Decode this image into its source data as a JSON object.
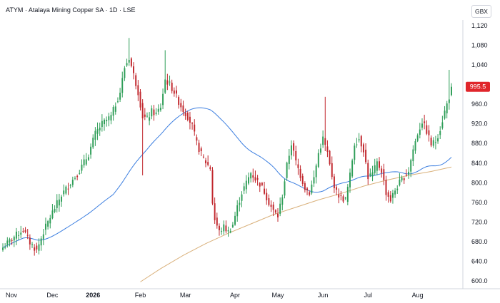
{
  "header": {
    "symbol": "ATYM",
    "separator": "·",
    "name": "Atalaya Mining Copper SA",
    "interval": "1D",
    "exchange": "LSE",
    "currency_button": "GBX"
  },
  "colors": {
    "up": "#2f9e58",
    "down": "#c1272d",
    "ma_fast": "#3d7fe0",
    "ma_slow": "#d9b07a",
    "last_price_bg": "#e0262b",
    "axis_text": "#131722",
    "border": "#d1d4dc"
  },
  "chart_data": {
    "type": "candlestick",
    "x_labels": [
      "Nov",
      "Dec",
      "2026",
      "Feb",
      "Mar",
      "Apr",
      "May",
      "Jun",
      "Jul",
      "Aug"
    ],
    "y_ticks": [
      600,
      640,
      680,
      720,
      760,
      800,
      840,
      880,
      920,
      960,
      1000,
      1040,
      1080,
      1120
    ],
    "y_tick_labels": [
      "600.0",
      "640.0",
      "680.0",
      "720.0",
      "760.0",
      "800.0",
      "840.0",
      "880.0",
      "920.0",
      "960.0",
      "",
      "1,040",
      "1,080",
      "1,120"
    ],
    "ylim": [
      590,
      1125
    ],
    "last_price": 995.5,
    "last_price_label": "995.5",
    "grid": false,
    "month_anchors": [
      {
        "label": "Nov",
        "index": 0
      },
      {
        "label": "Dec",
        "index": 22
      },
      {
        "label": "2026",
        "index": 40
      },
      {
        "label": "Feb",
        "index": 61
      },
      {
        "label": "Mar",
        "index": 81
      },
      {
        "label": "Apr",
        "index": 103
      },
      {
        "label": "May",
        "index": 122
      },
      {
        "label": "Jun",
        "index": 142
      },
      {
        "label": "Jul",
        "index": 162
      },
      {
        "label": "Aug",
        "index": 184
      }
    ],
    "close_anchors": [
      [
        0,
        668
      ],
      [
        5,
        690
      ],
      [
        9,
        705
      ],
      [
        12,
        678
      ],
      [
        15,
        662
      ],
      [
        18,
        700
      ],
      [
        22,
        740
      ],
      [
        26,
        775
      ],
      [
        30,
        800
      ],
      [
        34,
        825
      ],
      [
        38,
        858
      ],
      [
        41,
        900
      ],
      [
        44,
        920
      ],
      [
        48,
        935
      ],
      [
        52,
        985
      ],
      [
        54,
        1035
      ],
      [
        56,
        1055
      ],
      [
        58,
        1020
      ],
      [
        60,
        985
      ],
      [
        62,
        935
      ],
      [
        64,
        930
      ],
      [
        66,
        945
      ],
      [
        68,
        940
      ],
      [
        70,
        955
      ],
      [
        72,
        1010
      ],
      [
        74,
        1000
      ],
      [
        76,
        985
      ],
      [
        78,
        965
      ],
      [
        80,
        948
      ],
      [
        82,
        935
      ],
      [
        84,
        915
      ],
      [
        86,
        880
      ],
      [
        88,
        858
      ],
      [
        90,
        842
      ],
      [
        92,
        830
      ],
      [
        93,
        760
      ],
      [
        94,
        725
      ],
      [
        96,
        700
      ],
      [
        98,
        710
      ],
      [
        100,
        700
      ],
      [
        102,
        715
      ],
      [
        104,
        750
      ],
      [
        106,
        780
      ],
      [
        108,
        800
      ],
      [
        110,
        820
      ],
      [
        112,
        808
      ],
      [
        114,
        798
      ],
      [
        116,
        782
      ],
      [
        118,
        760
      ],
      [
        120,
        742
      ],
      [
        122,
        732
      ],
      [
        124,
        775
      ],
      [
        126,
        835
      ],
      [
        128,
        880
      ],
      [
        130,
        842
      ],
      [
        132,
        815
      ],
      [
        134,
        790
      ],
      [
        136,
        780
      ],
      [
        138,
        810
      ],
      [
        140,
        860
      ],
      [
        142,
        890
      ],
      [
        144,
        860
      ],
      [
        146,
        810
      ],
      [
        148,
        780
      ],
      [
        150,
        770
      ],
      [
        152,
        765
      ],
      [
        154,
        815
      ],
      [
        156,
        880
      ],
      [
        158,
        890
      ],
      [
        160,
        868
      ],
      [
        162,
        812
      ],
      [
        164,
        818
      ],
      [
        166,
        840
      ],
      [
        168,
        825
      ],
      [
        170,
        780
      ],
      [
        172,
        765
      ],
      [
        174,
        785
      ],
      [
        176,
        800
      ],
      [
        178,
        812
      ],
      [
        180,
        825
      ],
      [
        182,
        868
      ],
      [
        184,
        900
      ],
      [
        186,
        925
      ],
      [
        188,
        905
      ],
      [
        190,
        878
      ],
      [
        192,
        885
      ],
      [
        194,
        910
      ],
      [
        196,
        945
      ],
      [
        198,
        975
      ],
      [
        199,
        995.5
      ]
    ],
    "spikes": [
      {
        "index": 62,
        "low": 815
      },
      {
        "index": 143,
        "high": 975
      },
      {
        "index": 198,
        "high": 1030
      },
      {
        "index": 56,
        "high": 1095
      },
      {
        "index": 72,
        "high": 1070
      }
    ],
    "series": [
      {
        "name": "",
        "kind": "ma",
        "period": 50,
        "color": "#3d7fe0"
      },
      {
        "name": "",
        "kind": "ma",
        "period": 200,
        "color": "#d9b07a",
        "points": [
          [
            61,
            598
          ],
          [
            70,
            625
          ],
          [
            80,
            652
          ],
          [
            90,
            676
          ],
          [
            100,
            697
          ],
          [
            110,
            716
          ],
          [
            120,
            735
          ],
          [
            130,
            750
          ],
          [
            140,
            765
          ],
          [
            150,
            778
          ],
          [
            160,
            793
          ],
          [
            170,
            805
          ],
          [
            180,
            815
          ],
          [
            190,
            823
          ],
          [
            199,
            832
          ]
        ]
      }
    ]
  }
}
